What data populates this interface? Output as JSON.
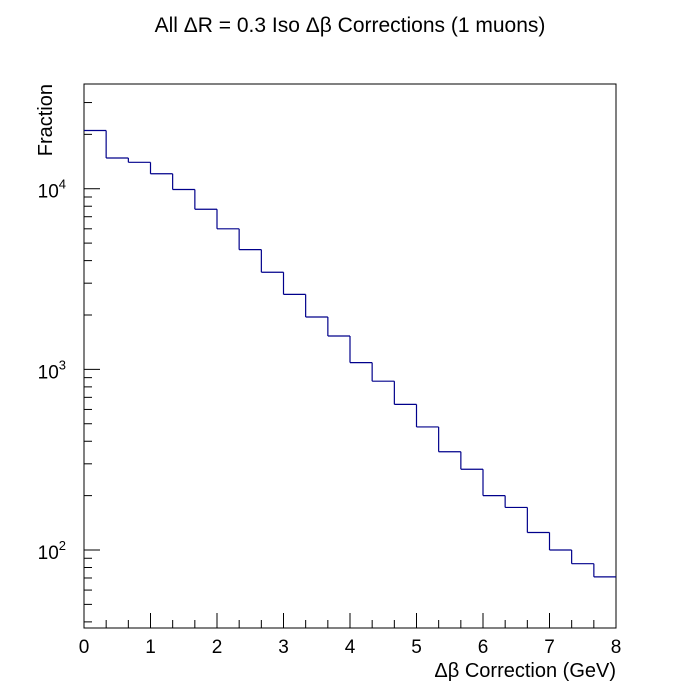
{
  "chart_data": {
    "type": "histogram",
    "title": "All ΔR = 0.3 Iso Δβ Corrections (1 muons)",
    "xlabel": "Δβ Correction (GeV)",
    "ylabel": "Fraction",
    "xlim": [
      0,
      8
    ],
    "ylim": [
      37,
      38000
    ],
    "yscale": "log",
    "grid": false,
    "line_color": "#00008b",
    "x_ticks": [
      "0",
      "1",
      "2",
      "3",
      "4",
      "5",
      "6",
      "7",
      "8"
    ],
    "y_ticks": [
      {
        "value": 100,
        "base": "10",
        "exp": "2"
      },
      {
        "value": 1000,
        "base": "10",
        "exp": "3"
      },
      {
        "value": 10000,
        "base": "10",
        "exp": "4"
      }
    ],
    "bin_edges": [
      0,
      0.333,
      0.667,
      1.0,
      1.333,
      1.667,
      2.0,
      2.333,
      2.667,
      3.0,
      3.333,
      3.667,
      4.0,
      4.333,
      4.667,
      5.0,
      5.333,
      5.667,
      6.0,
      6.333,
      6.667,
      7.0,
      7.333,
      7.667,
      8.0
    ],
    "values": [
      21000,
      14800,
      14000,
      12100,
      9900,
      7700,
      6000,
      4600,
      3450,
      2600,
      1950,
      1530,
      1090,
      860,
      640,
      480,
      350,
      280,
      200,
      172,
      125,
      100,
      84,
      71
    ]
  }
}
